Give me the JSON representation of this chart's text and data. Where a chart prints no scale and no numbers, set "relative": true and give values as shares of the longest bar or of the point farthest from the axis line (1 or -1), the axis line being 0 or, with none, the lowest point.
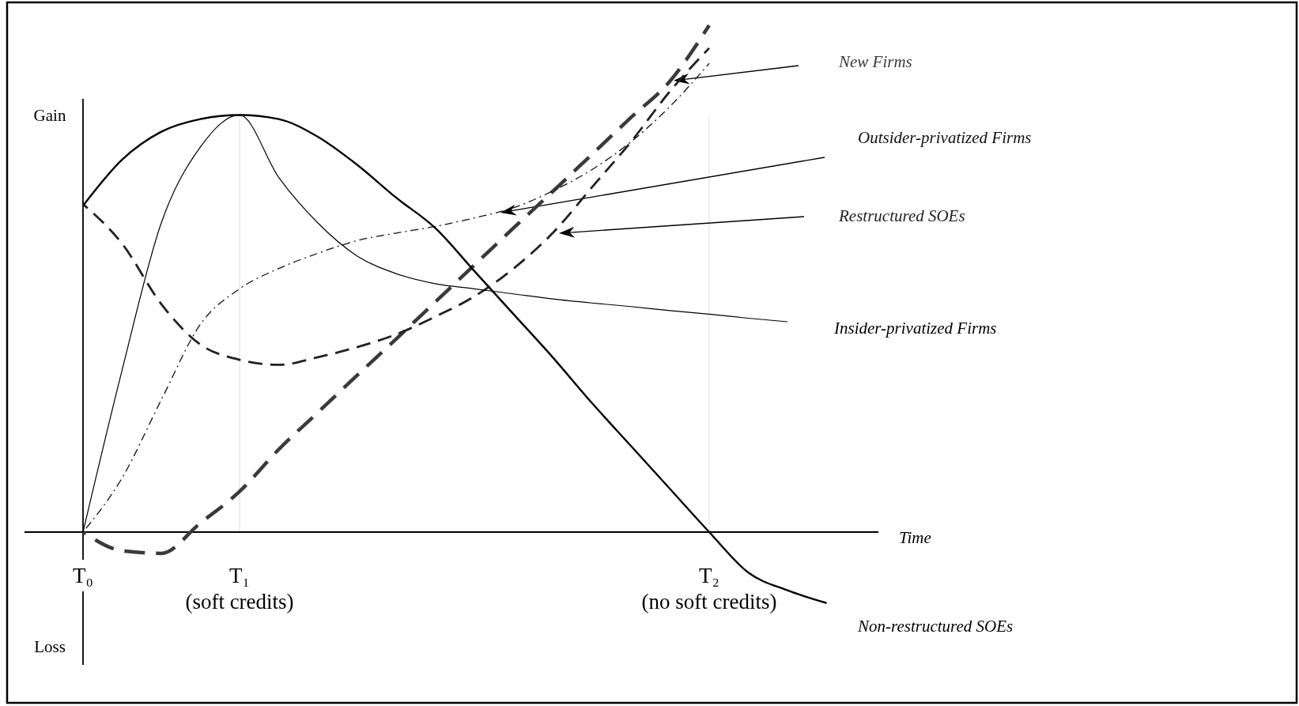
{
  "chart_data": {
    "type": "line",
    "relative": true,
    "xlabel": "Time",
    "annotations": [
      "Gain",
      "Loss"
    ],
    "categories": [
      "T₀",
      null,
      null,
      null,
      "T₁\n(soft credits)",
      null,
      null,
      null,
      null,
      null,
      null,
      null,
      null,
      null,
      null,
      null,
      "T₂\n(no soft credits)",
      null,
      null,
      null
    ],
    "grid": "x",
    "legend": false,
    "series": [
      {
        "name": "New Firms",
        "color": "#3a3a3a",
        "line_style": "dashed",
        "values": [
          0,
          -0.037,
          -0.042,
          0.018,
          0.08,
          0.163,
          0.236,
          0.309,
          0.381,
          0.454,
          0.527,
          0.6,
          0.672,
          0.745,
          0.818,
          0.89,
          1,
          null,
          null,
          null
        ]
      },
      {
        "name": "Outsider-privatized Firms",
        "color": "#111111",
        "line_style": "dashdot",
        "values": [
          0,
          0.107,
          0.261,
          0.41,
          0.48,
          0.52,
          0.55,
          0.575,
          0.59,
          0.603,
          0.62,
          0.64,
          0.673,
          0.715,
          0.77,
          0.84,
          0.925,
          null,
          null,
          null
        ]
      },
      {
        "name": "Restructured SOEs",
        "color": "#222222",
        "line_style": "dashed",
        "values": [
          0.647,
          0.569,
          0.45,
          0.37,
          0.34,
          0.33,
          0.345,
          0.365,
          0.39,
          0.425,
          0.465,
          0.52,
          0.59,
          0.68,
          0.77,
          0.87,
          0.955,
          null,
          null,
          null
        ]
      },
      {
        "name": "Insider-privatized Firms",
        "color": "#000000",
        "line_style": "solid",
        "values": [
          0,
          0.32,
          0.61,
          0.76,
          0.823,
          0.7,
          0.61,
          0.545,
          0.51,
          0.49,
          0.48,
          0.47,
          0.46,
          0.452,
          0.445,
          0.437,
          0.43,
          0.422,
          0.415,
          null
        ]
      },
      {
        "name": "Non-restructured SOEs",
        "color": "#000000",
        "line_style": "solid",
        "values": [
          0.644,
          0.735,
          0.79,
          0.815,
          0.823,
          0.815,
          0.78,
          0.725,
          0.66,
          0.6,
          0.515,
          0.43,
          0.345,
          0.255,
          0.17,
          0.085,
          0,
          -0.08,
          -0.115,
          -0.14
        ]
      }
    ]
  }
}
